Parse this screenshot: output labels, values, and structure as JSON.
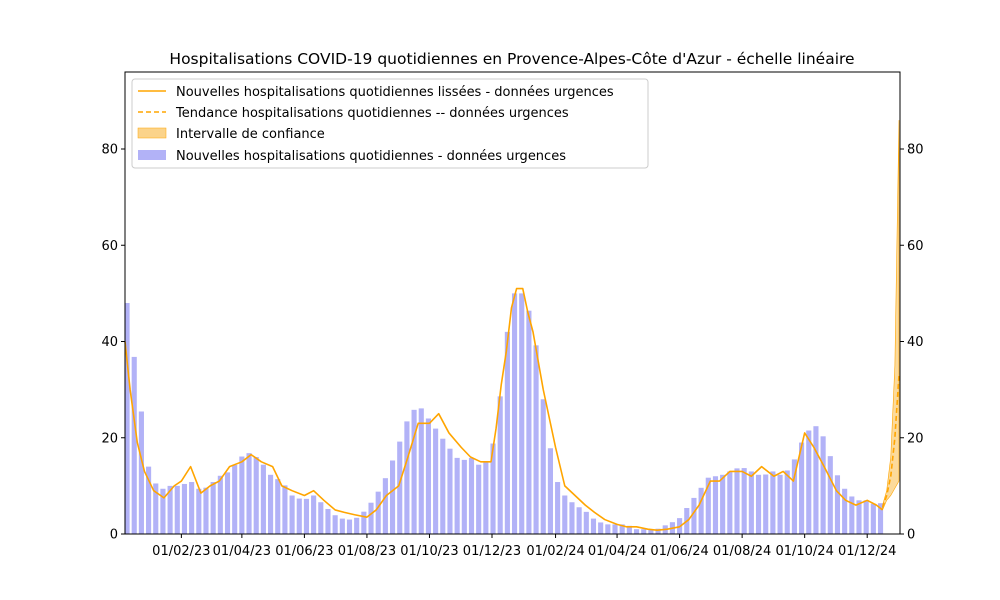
{
  "chart_data": {
    "type": "bar",
    "title": "Hospitalisations COVID-19 quotidiennes en Provence-Alpes-Côte d'Azur - échelle linéaire",
    "xlabel": "",
    "ylabel": "",
    "ylim": [
      0,
      96
    ],
    "y_ticks": [
      0,
      20,
      40,
      60,
      80
    ],
    "x_ticks": [
      "01/02/23",
      "01/04/23",
      "01/06/23",
      "01/08/23",
      "01/10/23",
      "01/12/23",
      "01/02/24",
      "01/04/24",
      "01/06/24",
      "01/08/24",
      "01/10/24",
      "01/12/24"
    ],
    "x_range": [
      "2022-12-08",
      "2025-01-02"
    ],
    "grid": false,
    "legend_position": "top-left",
    "colors": {
      "bars": "#b2b2f7",
      "line": "#ffa500",
      "band": "#fbd38a"
    },
    "legend": [
      "Nouvelles hospitalisations quotidiennes lissées - données urgences",
      "Tendance hospitalisations quotidiennes -- données urgences",
      "Intervalle de confiance",
      "Nouvelles hospitalisations quotidiennes - données urgences"
    ],
    "series": [
      {
        "name": "Nouvelles hospitalisations quotidiennes - données urgences",
        "kind": "bar",
        "x": [
          "2022-12-10",
          "2022-12-20",
          "2022-12-31",
          "2023-01-10",
          "2023-01-20",
          "2023-01-31",
          "2023-02-10",
          "2023-02-20",
          "2023-02-28",
          "2023-03-10",
          "2023-03-20",
          "2023-03-31",
          "2023-04-10",
          "2023-04-20",
          "2023-04-30",
          "2023-05-10",
          "2023-05-20",
          "2023-05-31",
          "2023-06-10",
          "2023-06-20",
          "2023-06-30",
          "2023-07-10",
          "2023-07-20",
          "2023-07-31",
          "2023-08-10",
          "2023-08-20",
          "2023-08-31",
          "2023-09-10",
          "2023-09-20",
          "2023-09-30",
          "2023-10-10",
          "2023-10-20",
          "2023-10-31",
          "2023-11-10",
          "2023-11-20",
          "2023-11-30",
          "2023-12-10",
          "2023-12-20",
          "2023-12-31",
          "2024-01-10",
          "2024-01-20",
          "2024-01-31",
          "2024-02-10",
          "2024-02-20",
          "2024-02-29",
          "2024-03-10",
          "2024-03-20",
          "2024-03-31",
          "2024-04-10",
          "2024-04-20",
          "2024-04-30",
          "2024-05-10",
          "2024-05-20",
          "2024-05-31",
          "2024-06-10",
          "2024-06-20",
          "2024-06-30",
          "2024-07-10",
          "2024-07-20",
          "2024-07-31",
          "2024-08-10",
          "2024-08-20",
          "2024-08-31",
          "2024-09-10",
          "2024-09-20",
          "2024-09-30",
          "2024-10-10",
          "2024-10-20",
          "2024-10-31",
          "2024-11-10",
          "2024-11-20",
          "2024-11-30",
          "2024-12-10",
          "2024-12-20"
        ],
        "values": [
          48,
          32,
          14,
          9,
          10,
          10,
          11,
          9,
          10,
          12,
          13,
          16,
          17,
          15,
          12,
          11,
          8,
          7,
          8,
          6,
          4,
          3,
          3,
          5,
          8,
          12,
          18,
          24,
          27,
          24,
          21,
          18,
          15,
          16,
          14,
          16,
          30,
          50,
          50,
          44,
          28,
          12,
          8,
          6,
          5,
          3,
          2,
          2,
          2,
          1,
          1,
          1,
          2,
          3,
          6,
          9,
          12,
          12,
          13,
          14,
          13,
          12,
          13,
          12,
          15,
          20,
          23,
          20,
          13,
          9,
          7,
          7,
          6,
          7
        ]
      },
      {
        "name": "Nouvelles hospitalisations quotidiennes lissées - données urgences",
        "kind": "line",
        "x": [
          "2022-12-08",
          "2022-12-13",
          "2022-12-20",
          "2022-12-27",
          "2023-01-05",
          "2023-01-15",
          "2023-01-25",
          "2023-02-01",
          "2023-02-10",
          "2023-02-20",
          "2023-03-01",
          "2023-03-10",
          "2023-03-20",
          "2023-04-01",
          "2023-04-10",
          "2023-04-20",
          "2023-05-01",
          "2023-05-10",
          "2023-05-20",
          "2023-06-01",
          "2023-06-10",
          "2023-06-20",
          "2023-07-01",
          "2023-07-10",
          "2023-07-20",
          "2023-08-01",
          "2023-08-10",
          "2023-08-20",
          "2023-09-01",
          "2023-09-10",
          "2023-09-20",
          "2023-10-01",
          "2023-10-10",
          "2023-10-20",
          "2023-11-01",
          "2023-11-10",
          "2023-11-20",
          "2023-11-30",
          "2023-12-05",
          "2023-12-10",
          "2023-12-15",
          "2023-12-20",
          "2023-12-25",
          "2023-12-31",
          "2024-01-05",
          "2024-01-10",
          "2024-01-15",
          "2024-01-20",
          "2024-02-01",
          "2024-02-10",
          "2024-02-20",
          "2024-03-01",
          "2024-03-10",
          "2024-03-20",
          "2024-04-01",
          "2024-04-10",
          "2024-04-20",
          "2024-05-01",
          "2024-05-10",
          "2024-05-20",
          "2024-06-01",
          "2024-06-10",
          "2024-06-20",
          "2024-07-01",
          "2024-07-10",
          "2024-07-20",
          "2024-08-01",
          "2024-08-10",
          "2024-08-20",
          "2024-09-01",
          "2024-09-10",
          "2024-09-20",
          "2024-10-01",
          "2024-10-10",
          "2024-10-20",
          "2024-11-01",
          "2024-11-10",
          "2024-11-20",
          "2024-12-01",
          "2024-12-10",
          "2024-12-16"
        ],
        "values": [
          40,
          30,
          19,
          13,
          9,
          7.5,
          10,
          11,
          14,
          8.5,
          10,
          11,
          14,
          15,
          16.5,
          15,
          14,
          10,
          9,
          8,
          9,
          7,
          5,
          4.5,
          4,
          3.5,
          5,
          8,
          10,
          16,
          23,
          23,
          25,
          21,
          18,
          16,
          15,
          15,
          22,
          31,
          38,
          47,
          51,
          51,
          46,
          42,
          36,
          30,
          18,
          10,
          8,
          6,
          4.5,
          3,
          2,
          1.5,
          1.5,
          1,
          0.8,
          1,
          1.5,
          3,
          6,
          11,
          11,
          13,
          13,
          12,
          14,
          12,
          13,
          11,
          21,
          18,
          14,
          9,
          7,
          6,
          7,
          6,
          5
        ]
      },
      {
        "name": "Tendance hospitalisations quotidiennes -- données urgences",
        "kind": "dashed-line",
        "x": [
          "2024-12-16",
          "2024-12-20",
          "2024-12-24",
          "2024-12-28",
          "2025-01-01"
        ],
        "values": [
          5.5,
          8,
          12,
          20,
          33
        ]
      },
      {
        "name": "Intervalle de confiance",
        "kind": "band",
        "x": [
          "2024-12-16",
          "2024-12-20",
          "2024-12-24",
          "2024-12-28",
          "2025-01-01"
        ],
        "lower": [
          5,
          7,
          8,
          9.5,
          11
        ],
        "upper": [
          6,
          9,
          16,
          35,
          86
        ]
      }
    ]
  }
}
